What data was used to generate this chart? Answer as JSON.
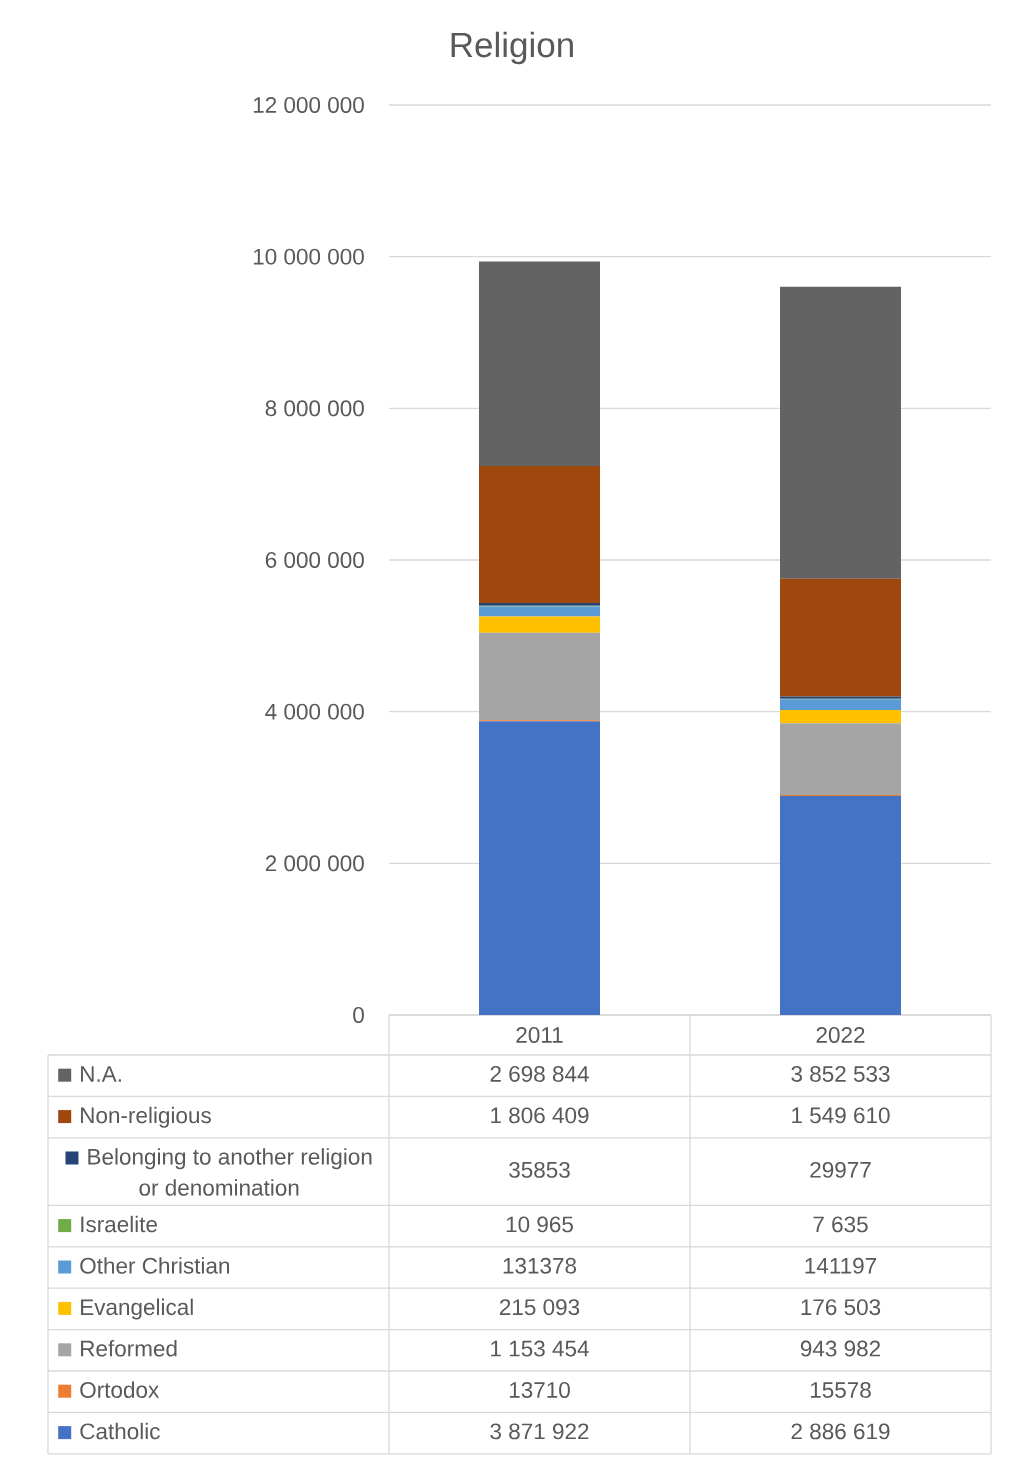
{
  "chart_data": {
    "type": "bar",
    "title": "Religion",
    "stacked": true,
    "categories": [
      "2011",
      "2022"
    ],
    "series": [
      {
        "name": "Catholic",
        "color": "#4472c4",
        "values": [
          3871922,
          2886619
        ],
        "value_labels": [
          "3 871 922",
          "2 886 619"
        ]
      },
      {
        "name": "Ortodox",
        "color": "#ed7d31",
        "values": [
          13710,
          15578
        ],
        "value_labels": [
          "13710",
          "15578"
        ]
      },
      {
        "name": "Reformed",
        "color": "#a5a5a5",
        "values": [
          1153454,
          943982
        ],
        "value_labels": [
          "1 153 454",
          "943 982"
        ]
      },
      {
        "name": "Evangelical",
        "color": "#ffc000",
        "values": [
          215093,
          176503
        ],
        "value_labels": [
          "215 093",
          "176 503"
        ]
      },
      {
        "name": "Other Christian",
        "color": "#5b9bd5",
        "values": [
          131378,
          141197
        ],
        "value_labels": [
          "131378",
          "141197"
        ]
      },
      {
        "name": "Israelite",
        "color": "#70ad47",
        "values": [
          10965,
          7635
        ],
        "value_labels": [
          "10 965",
          "7 635"
        ]
      },
      {
        "name": "Belonging to another religion or denomination",
        "color": "#264478",
        "values": [
          35853,
          29977
        ],
        "value_labels": [
          "35853",
          "29977"
        ]
      },
      {
        "name": "Non-religious",
        "color": "#9e480e",
        "values": [
          1806409,
          1549610
        ],
        "value_labels": [
          "1 806 409",
          "1 549 610"
        ]
      },
      {
        "name": "N.A.",
        "color": "#636363",
        "values": [
          2698844,
          3852533
        ],
        "value_labels": [
          "2 698 844",
          "3 852 533"
        ]
      }
    ],
    "ylim": [
      0,
      12000000
    ],
    "yticks": [
      0,
      {
        "value": 2000000,
        "label": "2 000 000"
      },
      {
        "value": 4000000,
        "label": "4 000 000"
      },
      {
        "value": 6000000,
        "label": "6 000 000"
      },
      {
        "value": 8000000,
        "label": "8 000 000"
      },
      {
        "value": 10000000,
        "label": "10 000 000"
      },
      {
        "value": 12000000,
        "label": "12 000 000"
      }
    ],
    "grid": "y",
    "legend": "bottom"
  }
}
